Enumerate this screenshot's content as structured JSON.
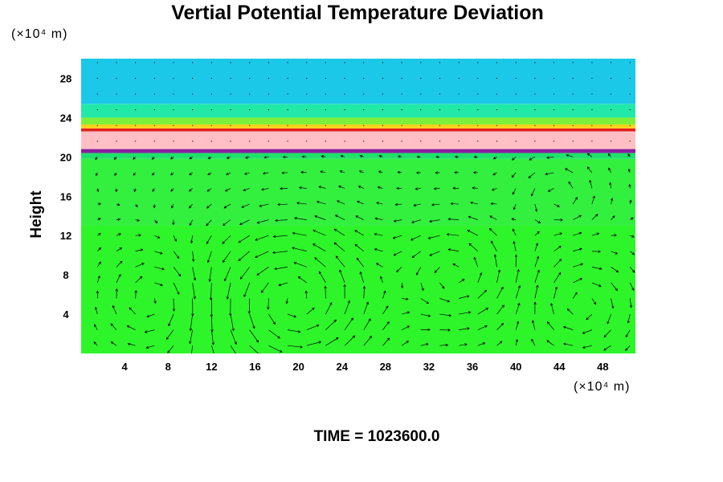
{
  "chart_data": {
    "type": "heatmap",
    "title": "Vertial Potential Temperature Deviation",
    "ylabel": "Height",
    "xlabel": "",
    "x_unit": "(×10⁴ m)",
    "y_unit": "(×10⁴ m)",
    "xlim": [
      0,
      51
    ],
    "ylim": [
      0,
      30
    ],
    "x_ticks": [
      4,
      8,
      12,
      16,
      20,
      24,
      28,
      32,
      36,
      40,
      44,
      48
    ],
    "y_ticks": [
      4,
      8,
      12,
      16,
      20,
      24,
      28
    ],
    "bands": [
      {
        "y0": 0,
        "y1": 13,
        "color": "#2ef52a"
      },
      {
        "y0": 13,
        "y1": 19.8,
        "color": "#33f03f"
      },
      {
        "y0": 19.8,
        "y1": 20.4,
        "color": "#20e06a"
      },
      {
        "y0": 20.4,
        "y1": 20.8,
        "color": "#8a1fa0"
      },
      {
        "y0": 20.8,
        "y1": 22.6,
        "color": "#ffbfc4"
      },
      {
        "y0": 22.6,
        "y1": 22.9,
        "color": "#e0201e"
      },
      {
        "y0": 22.9,
        "y1": 23.3,
        "color": "#ffd21a"
      },
      {
        "y0": 23.3,
        "y1": 24.0,
        "color": "#7cf03a"
      },
      {
        "y0": 24.0,
        "y1": 25.4,
        "color": "#22e8a8"
      },
      {
        "y0": 25.4,
        "y1": 30,
        "color": "#1cc8e8"
      }
    ],
    "vortices": [
      {
        "cx": 19.5,
        "cy": 5.5,
        "r": 7.5,
        "dir": 1
      },
      {
        "cx": 7,
        "cy": 5.5,
        "r": 4.5,
        "dir": -1
      },
      {
        "cx": 34.5,
        "cy": 8,
        "r": 5.5,
        "dir": 1
      },
      {
        "cx": 46,
        "cy": 5,
        "r": 4.5,
        "dir": -1
      },
      {
        "cx": 44,
        "cy": 16,
        "r": 3.5,
        "dir": 1
      }
    ],
    "time_label": "TIME = 1023600.0"
  }
}
